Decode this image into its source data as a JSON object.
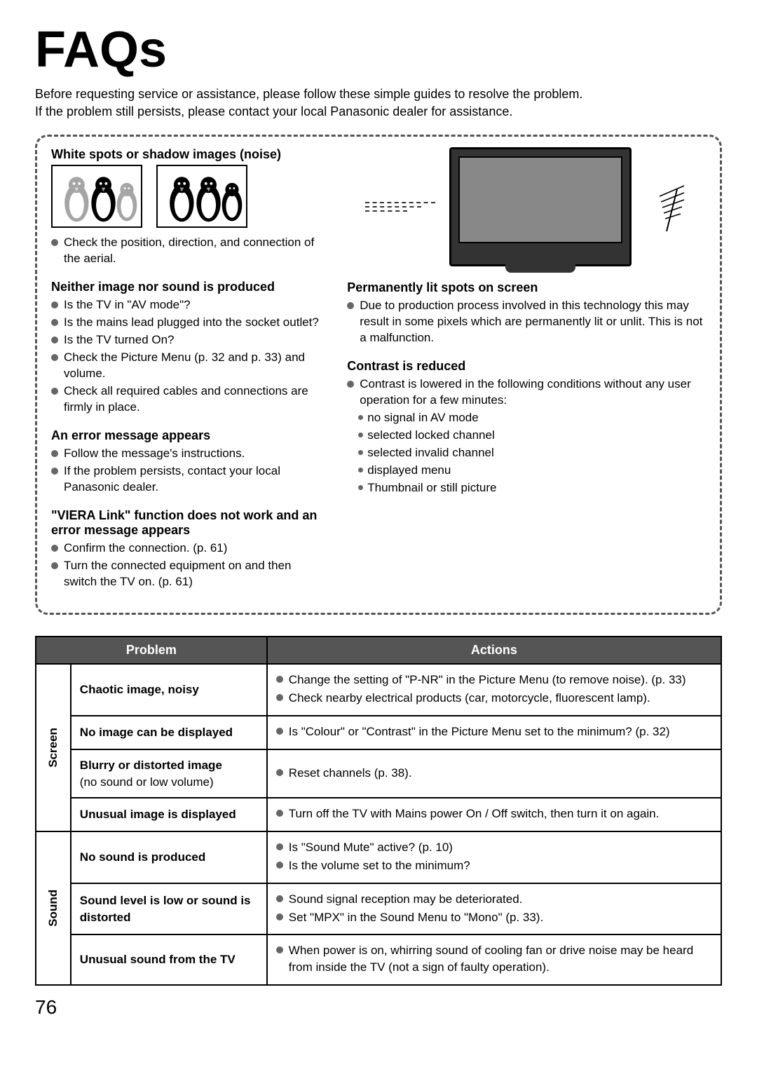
{
  "title": "FAQs",
  "intro_line1": "Before requesting service or assistance, please follow these simple guides to resolve the problem.",
  "intro_line2": "If the problem still persists, please contact your local Panasonic dealer for assistance.",
  "left_sections": [
    {
      "heading": "White spots or shadow images (noise)",
      "has_images": true,
      "items": [
        "Check the position, direction, and connection of the aerial."
      ]
    },
    {
      "heading": "Neither image nor sound is produced",
      "items": [
        "Is the TV in \"AV mode\"?",
        "Is the mains lead plugged into the socket outlet?",
        "Is the TV turned On?",
        "Check the Picture Menu (p. 32 and p. 33) and volume.",
        "Check all required cables and connections are firmly in place."
      ]
    },
    {
      "heading": "An error message appears",
      "items": [
        "Follow the message's instructions.",
        "If the problem persists, contact your local Panasonic dealer."
      ]
    },
    {
      "heading": "\"VIERA Link\" function does not work and an error message appears",
      "items": [
        "Confirm the connection. (p. 61)",
        "Turn the connected equipment on and then switch the TV on. (p. 61)"
      ]
    }
  ],
  "right_sections": [
    {
      "heading": "Permanently lit spots on screen",
      "items": [
        "Due to production process involved in this technology this may result in some pixels which are permanently lit or unlit. This is not a malfunction."
      ]
    },
    {
      "heading": "Contrast is reduced",
      "items": [
        "Contrast is lowered in the following conditions without any user operation for a few minutes:"
      ],
      "sub_items": [
        "no signal in AV mode",
        "selected locked channel",
        "selected invalid channel",
        "displayed menu",
        "Thumbnail or still picture"
      ]
    }
  ],
  "table": {
    "headers": [
      "Problem",
      "Actions"
    ],
    "categories": [
      {
        "name": "Screen",
        "rows": [
          {
            "problem": "Chaotic image, noisy",
            "actions": [
              "Change the setting of \"P-NR\" in the Picture Menu (to remove noise). (p. 33)",
              "Check nearby electrical products (car, motorcycle, fluorescent lamp)."
            ]
          },
          {
            "problem": "No image can be displayed",
            "actions": [
              "Is \"Colour\" or \"Contrast\" in the Picture Menu set to the minimum?  (p. 32)"
            ]
          },
          {
            "problem": "Blurry or distorted image",
            "problem_sub": "(no sound or low volume)",
            "actions": [
              "Reset channels (p. 38)."
            ]
          },
          {
            "problem": "Unusual image is displayed",
            "actions": [
              "Turn off the TV with Mains power On / Off switch, then turn it on again."
            ]
          }
        ]
      },
      {
        "name": "Sound",
        "rows": [
          {
            "problem": "No sound is produced",
            "actions": [
              "Is \"Sound Mute\" active? (p. 10)",
              "Is the volume set to the minimum?"
            ]
          },
          {
            "problem": "Sound level is low or sound is distorted",
            "actions": [
              "Sound signal reception may be deteriorated.",
              "Set \"MPX\" in the Sound Menu to \"Mono\" (p. 33)."
            ]
          },
          {
            "problem": "Unusual sound from the TV",
            "actions": [
              "When power is on, whirring sound of cooling fan or drive noise may be heard from inside the TV (not a sign of faulty operation)."
            ]
          }
        ]
      }
    ]
  },
  "page_number": "76",
  "colors": {
    "header_bg": "#555555",
    "header_fg": "#ffffff",
    "border": "#000000",
    "bullet": "#666666"
  }
}
